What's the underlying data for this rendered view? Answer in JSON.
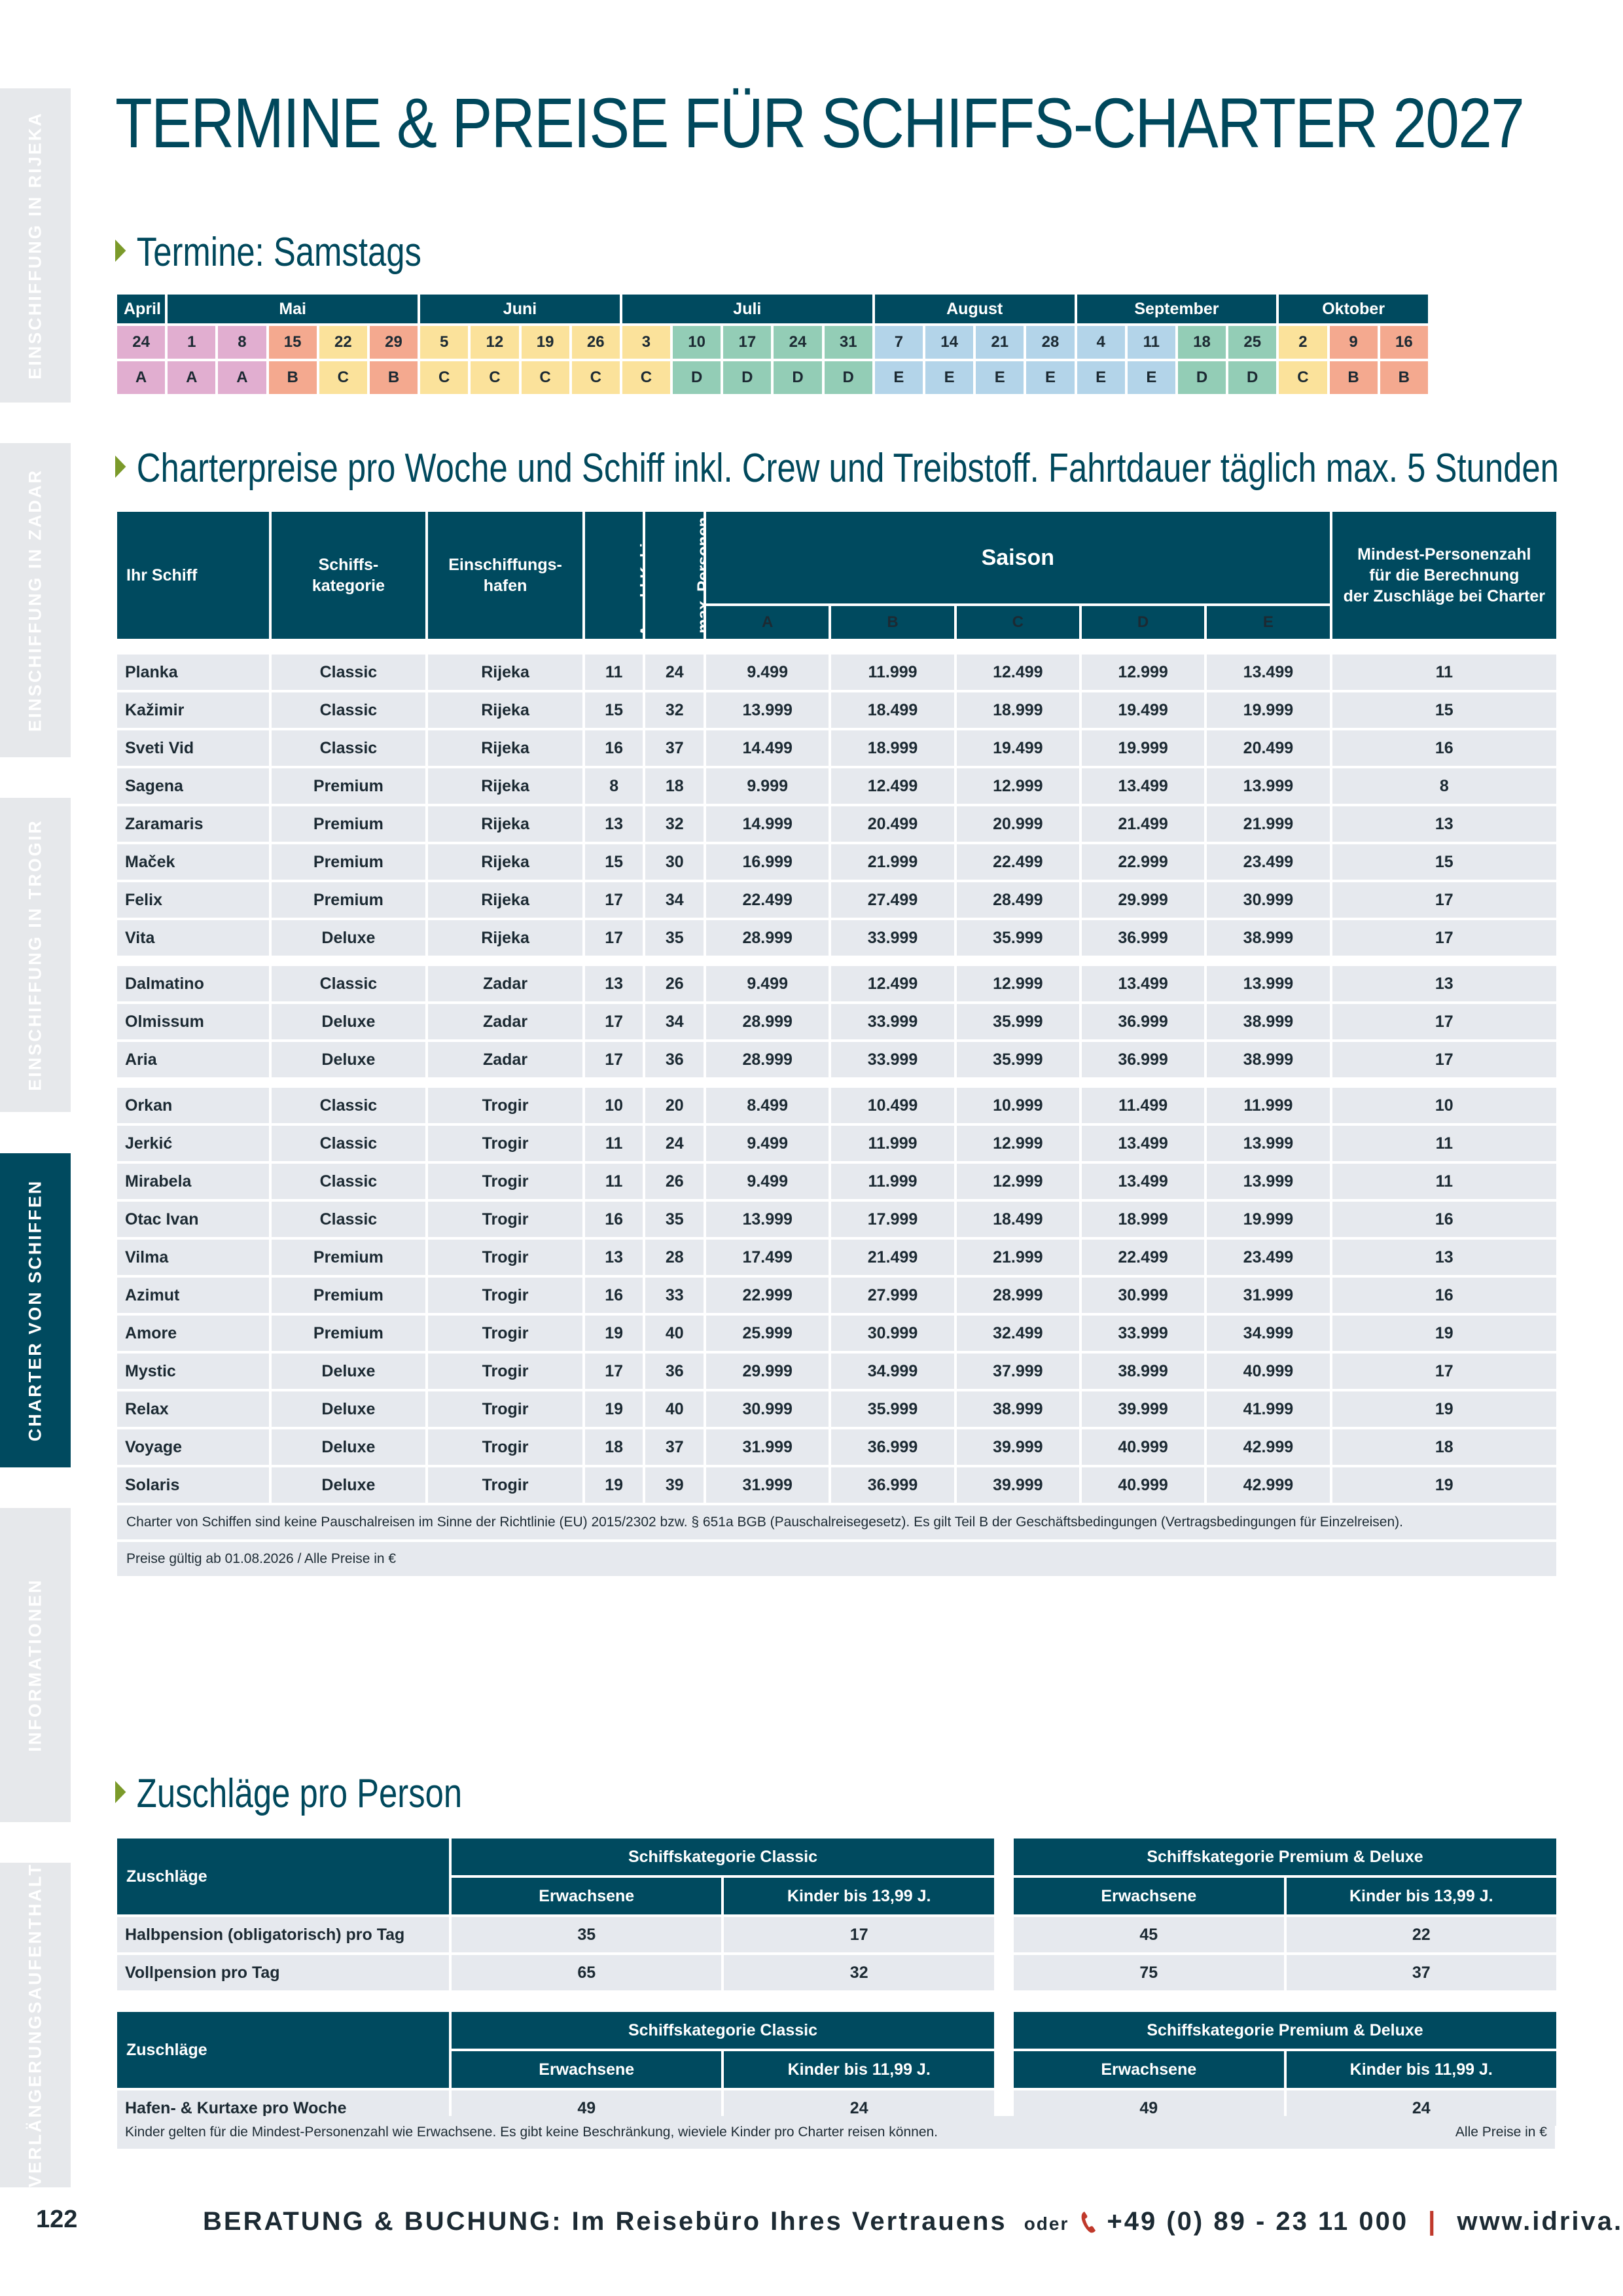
{
  "title": "TERMINE & PREISE FÜR SCHIFFS-CHARTER 2027",
  "side_tabs": [
    {
      "label": "EINSCHIFFUNG IN RIJEKA",
      "active": false
    },
    {
      "label": "EINSCHIFFUNG IN ZADAR",
      "active": false
    },
    {
      "label": "EINSCHIFFUNG IN TROGIR",
      "active": false
    },
    {
      "label": "CHARTER VON SCHIFFEN",
      "active": true
    },
    {
      "label": "INFORMATIONEN",
      "active": false
    },
    {
      "label": "VERLÄNGERUNGSAUFENTHALT",
      "active": false
    }
  ],
  "termine": {
    "heading": "Termine: Samstags",
    "months": [
      {
        "name": "April",
        "span": 1
      },
      {
        "name": "Mai",
        "span": 5
      },
      {
        "name": "Juni",
        "span": 4
      },
      {
        "name": "Juli",
        "span": 5
      },
      {
        "name": "August",
        "span": 4
      },
      {
        "name": "September",
        "span": 4
      },
      {
        "name": "Oktober",
        "span": 3
      }
    ],
    "days": [
      "24",
      "1",
      "8",
      "15",
      "22",
      "29",
      "5",
      "12",
      "19",
      "26",
      "3",
      "10",
      "17",
      "24",
      "31",
      "7",
      "14",
      "21",
      "28",
      "4",
      "11",
      "18",
      "25",
      "2",
      "9",
      "16"
    ],
    "seasons": [
      "A",
      "A",
      "A",
      "B",
      "C",
      "B",
      "C",
      "C",
      "C",
      "C",
      "C",
      "D",
      "D",
      "D",
      "D",
      "E",
      "E",
      "E",
      "E",
      "E",
      "E",
      "D",
      "D",
      "C",
      "B",
      "B"
    ]
  },
  "charter": {
    "heading": "Charterpreise pro Woche und Schiff inkl. Crew und Treibstoff. Fahrtdauer täglich max. 5 Stunden",
    "headers": {
      "ship": "Ihr Schiff",
      "category": "Schiffs-\nkategorie",
      "port": "Einschiffungs-\nhafen",
      "cabins": "Anzahl Kabinen",
      "persons": "max. Personen",
      "season": "Saison",
      "season_cols": [
        "A",
        "B",
        "C",
        "D",
        "E"
      ],
      "min": "Mindest-Personenzahl\nfür die Berechnung\nder Zuschläge bei Charter"
    },
    "groups": [
      [
        {
          "name": "Planka",
          "cat": "Classic",
          "port": "Rijeka",
          "cabins": "11",
          "persons": "24",
          "prices": [
            "9.499",
            "11.999",
            "12.499",
            "12.999",
            "13.499"
          ],
          "min": "11"
        },
        {
          "name": "Kažimir",
          "cat": "Classic",
          "port": "Rijeka",
          "cabins": "15",
          "persons": "32",
          "prices": [
            "13.999",
            "18.499",
            "18.999",
            "19.499",
            "19.999"
          ],
          "min": "15"
        },
        {
          "name": "Sveti Vid",
          "cat": "Classic",
          "port": "Rijeka",
          "cabins": "16",
          "persons": "37",
          "prices": [
            "14.499",
            "18.999",
            "19.499",
            "19.999",
            "20.499"
          ],
          "min": "16"
        },
        {
          "name": "Sagena",
          "cat": "Premium",
          "port": "Rijeka",
          "cabins": "8",
          "persons": "18",
          "prices": [
            "9.999",
            "12.499",
            "12.999",
            "13.499",
            "13.999"
          ],
          "min": "8"
        },
        {
          "name": "Zaramaris",
          "cat": "Premium",
          "port": "Rijeka",
          "cabins": "13",
          "persons": "32",
          "prices": [
            "14.999",
            "20.499",
            "20.999",
            "21.499",
            "21.999"
          ],
          "min": "13"
        },
        {
          "name": "Maček",
          "cat": "Premium",
          "port": "Rijeka",
          "cabins": "15",
          "persons": "30",
          "prices": [
            "16.999",
            "21.999",
            "22.499",
            "22.999",
            "23.499"
          ],
          "min": "15"
        },
        {
          "name": "Felix",
          "cat": "Premium",
          "port": "Rijeka",
          "cabins": "17",
          "persons": "34",
          "prices": [
            "22.499",
            "27.499",
            "28.499",
            "29.999",
            "30.999"
          ],
          "min": "17"
        },
        {
          "name": "Vita",
          "cat": "Deluxe",
          "port": "Rijeka",
          "cabins": "17",
          "persons": "35",
          "prices": [
            "28.999",
            "33.999",
            "35.999",
            "36.999",
            "38.999"
          ],
          "min": "17"
        }
      ],
      [
        {
          "name": "Dalmatino",
          "cat": "Classic",
          "port": "Zadar",
          "cabins": "13",
          "persons": "26",
          "prices": [
            "9.499",
            "12.499",
            "12.999",
            "13.499",
            "13.999"
          ],
          "min": "13"
        },
        {
          "name": "Olmissum",
          "cat": "Deluxe",
          "port": "Zadar",
          "cabins": "17",
          "persons": "34",
          "prices": [
            "28.999",
            "33.999",
            "35.999",
            "36.999",
            "38.999"
          ],
          "min": "17"
        },
        {
          "name": "Aria",
          "cat": "Deluxe",
          "port": "Zadar",
          "cabins": "17",
          "persons": "36",
          "prices": [
            "28.999",
            "33.999",
            "35.999",
            "36.999",
            "38.999"
          ],
          "min": "17"
        }
      ],
      [
        {
          "name": "Orkan",
          "cat": "Classic",
          "port": "Trogir",
          "cabins": "10",
          "persons": "20",
          "prices": [
            "8.499",
            "10.499",
            "10.999",
            "11.499",
            "11.999"
          ],
          "min": "10"
        },
        {
          "name": "Jerkić",
          "cat": "Classic",
          "port": "Trogir",
          "cabins": "11",
          "persons": "24",
          "prices": [
            "9.499",
            "11.999",
            "12.999",
            "13.499",
            "13.999"
          ],
          "min": "11"
        },
        {
          "name": "Mirabela",
          "cat": "Classic",
          "port": "Trogir",
          "cabins": "11",
          "persons": "26",
          "prices": [
            "9.499",
            "11.999",
            "12.999",
            "13.499",
            "13.999"
          ],
          "min": "11"
        },
        {
          "name": "Otac Ivan",
          "cat": "Classic",
          "port": "Trogir",
          "cabins": "16",
          "persons": "35",
          "prices": [
            "13.999",
            "17.999",
            "18.499",
            "18.999",
            "19.999"
          ],
          "min": "16"
        },
        {
          "name": "Vilma",
          "cat": "Premium",
          "port": "Trogir",
          "cabins": "13",
          "persons": "28",
          "prices": [
            "17.499",
            "21.499",
            "21.999",
            "22.499",
            "23.499"
          ],
          "min": "13"
        },
        {
          "name": "Azimut",
          "cat": "Premium",
          "port": "Trogir",
          "cabins": "16",
          "persons": "33",
          "prices": [
            "22.999",
            "27.999",
            "28.999",
            "30.999",
            "31.999"
          ],
          "min": "16"
        },
        {
          "name": "Amore",
          "cat": "Premium",
          "port": "Trogir",
          "cabins": "19",
          "persons": "40",
          "prices": [
            "25.999",
            "30.999",
            "32.499",
            "33.999",
            "34.999"
          ],
          "min": "19"
        },
        {
          "name": "Mystic",
          "cat": "Deluxe",
          "port": "Trogir",
          "cabins": "17",
          "persons": "36",
          "prices": [
            "29.999",
            "34.999",
            "37.999",
            "38.999",
            "40.999"
          ],
          "min": "17"
        },
        {
          "name": "Relax",
          "cat": "Deluxe",
          "port": "Trogir",
          "cabins": "19",
          "persons": "40",
          "prices": [
            "30.999",
            "35.999",
            "38.999",
            "39.999",
            "41.999"
          ],
          "min": "19"
        },
        {
          "name": "Voyage",
          "cat": "Deluxe",
          "port": "Trogir",
          "cabins": "18",
          "persons": "37",
          "prices": [
            "31.999",
            "36.999",
            "39.999",
            "40.999",
            "42.999"
          ],
          "min": "18"
        },
        {
          "name": "Solaris",
          "cat": "Deluxe",
          "port": "Trogir",
          "cabins": "19",
          "persons": "39",
          "prices": [
            "31.999",
            "36.999",
            "39.999",
            "40.999",
            "42.999"
          ],
          "min": "19"
        }
      ]
    ],
    "notes": [
      "Charter von Schiffen sind keine Pauschalreisen im Sinne der Richtlinie (EU) 2015/2302 bzw. § 651a BGB (Pauschalreisegesetz).  Es gilt Teil B der Geschäftsbedingungen (Vertragsbedingungen für Einzelreisen).",
      "Preise gültig ab 01.08.2026 / Alle  Preise in €"
    ]
  },
  "zuschlaege": {
    "heading": "Zuschläge pro Person",
    "tables": [
      {
        "label": "Zuschläge",
        "group1": "Schiffskategorie Classic",
        "group2": "Schiffskategorie Premium & Deluxe",
        "adult": "Erwachsene",
        "child": "Kinder bis 13,99 J.",
        "rows": [
          {
            "name": "Halbpension (obligatorisch) pro Tag",
            "values": [
              "35",
              "17",
              "45",
              "22"
            ]
          },
          {
            "name": "Vollpension pro Tag",
            "values": [
              "65",
              "32",
              "75",
              "37"
            ]
          }
        ]
      },
      {
        "label": "Zuschläge",
        "group1": "Schiffskategorie Classic",
        "group2": "Schiffskategorie Premium & Deluxe",
        "adult": "Erwachsene",
        "child": "Kinder bis 11,99 J.",
        "rows": [
          {
            "name": "Hafen- & Kurtaxe pro Woche",
            "values": [
              "49",
              "24",
              "49",
              "24"
            ]
          }
        ]
      }
    ],
    "note_left": "Kinder gelten für die Mindest-Personenzahl wie Erwachsene. Es gibt keine Beschränkung, wieviele Kinder pro Charter reisen können.",
    "note_right": "Alle  Preise in €"
  },
  "footer": {
    "page": "122",
    "text": "BERATUNG & BUCHUNG: Im Reisebüro Ihres Vertrauens",
    "oder": "oder",
    "phone": "+49 (0) 89 - 23 11 000",
    "separator": "|",
    "web": "www.idriva.de"
  },
  "colors": {
    "primary": "#004a5f",
    "A": "#e1aed0",
    "B": "#f4a98f",
    "C": "#fbe29b",
    "D": "#93cdb6",
    "E": "#b3d4e9",
    "panel": "#e6e9ee"
  }
}
